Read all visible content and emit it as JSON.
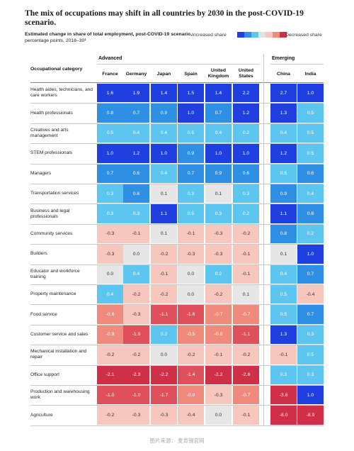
{
  "title": "The mix of occupations may shift in all countries by 2030 in the post-COVID-19 scenario.",
  "subtitle_bold": "Estimated change in share of total employment, post-COVID-19 scenario,",
  "subtitle_rest": " percentage points, 2018–30¹",
  "legend": {
    "increased_label": "Increased share",
    "decreased_label": "Decreased share",
    "swatches": [
      "#1f3fe0",
      "#2f8fe5",
      "#5cc6f0",
      "#e3e3e3",
      "#f7c6bd",
      "#ef8a7c",
      "#cf3048"
    ]
  },
  "category_header": "Occupational category",
  "groups": [
    {
      "label": "Advanced",
      "span": [
        0,
        5
      ]
    },
    {
      "label": "Emerging",
      "span": [
        6,
        7
      ]
    }
  ],
  "footer": "图片来源： 麦肯锡官网",
  "chart_data": {
    "type": "heatmap",
    "title": "The mix of occupations may shift in all countries by 2030 in the post-COVID-19 scenario.",
    "unit": "percentage points",
    "columns": [
      "France",
      "Germany",
      "Japan",
      "Spain",
      "United Kingdom",
      "United States",
      "China",
      "India"
    ],
    "rows": [
      "Health aides, technicians, and care workers",
      "Health professionals",
      "Creatives and arts management",
      "STEM professionals",
      "Managers",
      "Transportation services",
      "Business and legal professionals",
      "Community services",
      "Builders",
      "Educator and workforce training",
      "Property maintenance",
      "Food service",
      "Customer service and sales",
      "Mechanical installation and repair",
      "Office support",
      "Production and warehousing work",
      "Agriculture"
    ],
    "values": [
      [
        1.6,
        1.9,
        1.4,
        1.5,
        1.4,
        2.2,
        2.7,
        1.0
      ],
      [
        0.8,
        0.7,
        0.9,
        1.0,
        0.7,
        1.2,
        1.3,
        0.5
      ],
      [
        0.5,
        0.4,
        0.4,
        0.5,
        0.4,
        0.2,
        0.4,
        0.5
      ],
      [
        1.0,
        1.2,
        1.0,
        0.9,
        1.0,
        1.0,
        1.2,
        0.5
      ],
      [
        0.7,
        0.6,
        0.4,
        0.7,
        0.9,
        0.6,
        0.5,
        0.6
      ],
      [
        0.3,
        0.6,
        0.1,
        0.3,
        0.1,
        0.3,
        0.9,
        0.4
      ],
      [
        0.3,
        0.3,
        1.1,
        0.5,
        0.3,
        0.2,
        1.1,
        0.8
      ],
      [
        -0.3,
        -0.1,
        0.1,
        -0.1,
        -0.3,
        -0.2,
        0.8,
        0.2
      ],
      [
        -0.3,
        0.0,
        -0.2,
        -0.3,
        -0.3,
        -0.1,
        0.1,
        1.0
      ],
      [
        0.0,
        0.4,
        -0.1,
        0.0,
        0.2,
        -0.1,
        0.4,
        0.7
      ],
      [
        0.4,
        -0.2,
        -0.2,
        0.0,
        -0.2,
        0.1,
        0.5,
        -0.4
      ],
      [
        -0.6,
        -0.3,
        -1.1,
        -1.6,
        -0.7,
        -0.7,
        0.5,
        0.7
      ],
      [
        -0.9,
        -1.9,
        0.2,
        -0.5,
        -0.8,
        -1.1,
        1.3,
        0.3
      ],
      [
        -0.2,
        -0.2,
        0.0,
        -0.2,
        -0.1,
        -0.2,
        -0.1,
        0.5
      ],
      [
        -2.1,
        -2.3,
        -2.2,
        -1.4,
        -2.2,
        -2.6,
        0.3,
        0.3
      ],
      [
        -1.0,
        -1.0,
        -1.7,
        -0.9,
        -0.3,
        -0.7,
        -3.8,
        1.0
      ],
      [
        -0.2,
        -0.3,
        -0.3,
        -0.4,
        0.0,
        -0.1,
        -8.0,
        -8.9
      ]
    ]
  }
}
